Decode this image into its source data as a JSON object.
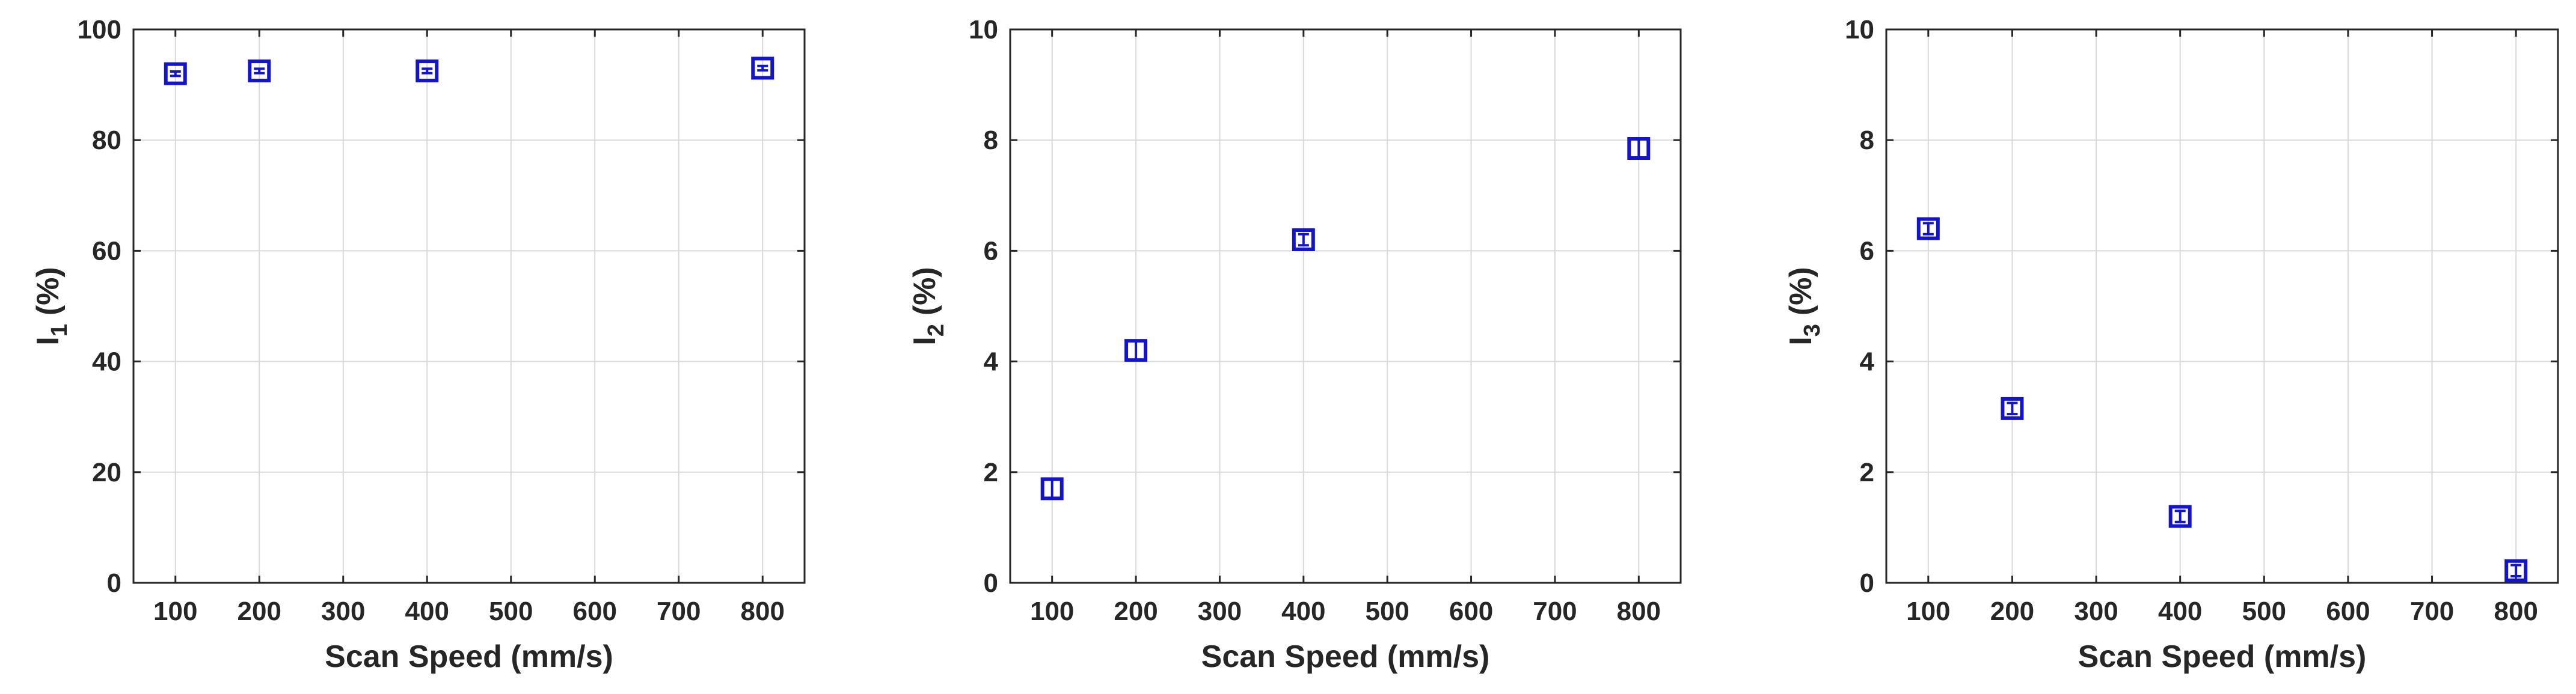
{
  "chart_data": [
    {
      "type": "scatter",
      "xlabel": "Scan Speed (mm/s)",
      "ylabel": {
        "main": "I",
        "sub": "1",
        "unit": "(%)"
      },
      "xlim": [
        50,
        850
      ],
      "ylim": [
        0,
        100
      ],
      "xticks": [
        100,
        200,
        300,
        400,
        500,
        600,
        700,
        800
      ],
      "yticks": [
        0,
        20,
        40,
        60,
        80,
        100
      ],
      "grid": true,
      "marker": "square",
      "series": [
        {
          "x": [
            100,
            200,
            400,
            800
          ],
          "y": [
            92,
            92.5,
            92.5,
            93
          ],
          "err": [
            0.4,
            0.4,
            0.4,
            0.4
          ]
        }
      ]
    },
    {
      "type": "scatter",
      "xlabel": "Scan Speed (mm/s)",
      "ylabel": {
        "main": "I",
        "sub": "2",
        "unit": "(%)"
      },
      "xlim": [
        50,
        850
      ],
      "ylim": [
        0,
        10
      ],
      "xticks": [
        100,
        200,
        300,
        400,
        500,
        600,
        700,
        800
      ],
      "yticks": [
        0,
        2,
        4,
        6,
        8,
        10
      ],
      "grid": true,
      "marker": "square",
      "series": [
        {
          "x": [
            100,
            200,
            400,
            800
          ],
          "y": [
            1.7,
            4.2,
            6.2,
            7.85
          ],
          "err": [
            0.18,
            0.18,
            0.1,
            0.18
          ]
        }
      ]
    },
    {
      "type": "scatter",
      "xlabel": "Scan Speed (mm/s)",
      "ylabel": {
        "main": "I",
        "sub": "3",
        "unit": "(%)"
      },
      "xlim": [
        50,
        850
      ],
      "ylim": [
        0,
        10
      ],
      "xticks": [
        100,
        200,
        300,
        400,
        500,
        600,
        700,
        800
      ],
      "yticks": [
        0,
        2,
        4,
        6,
        8,
        10
      ],
      "grid": true,
      "marker": "square",
      "series": [
        {
          "x": [
            100,
            200,
            400,
            800
          ],
          "y": [
            6.4,
            3.15,
            1.2,
            0.22
          ],
          "err": [
            0.1,
            0.1,
            0.1,
            0.1
          ]
        }
      ]
    }
  ],
  "colors": {
    "marker": "#1414c8",
    "grid": "#d9d9d9",
    "axis": "#262626"
  }
}
